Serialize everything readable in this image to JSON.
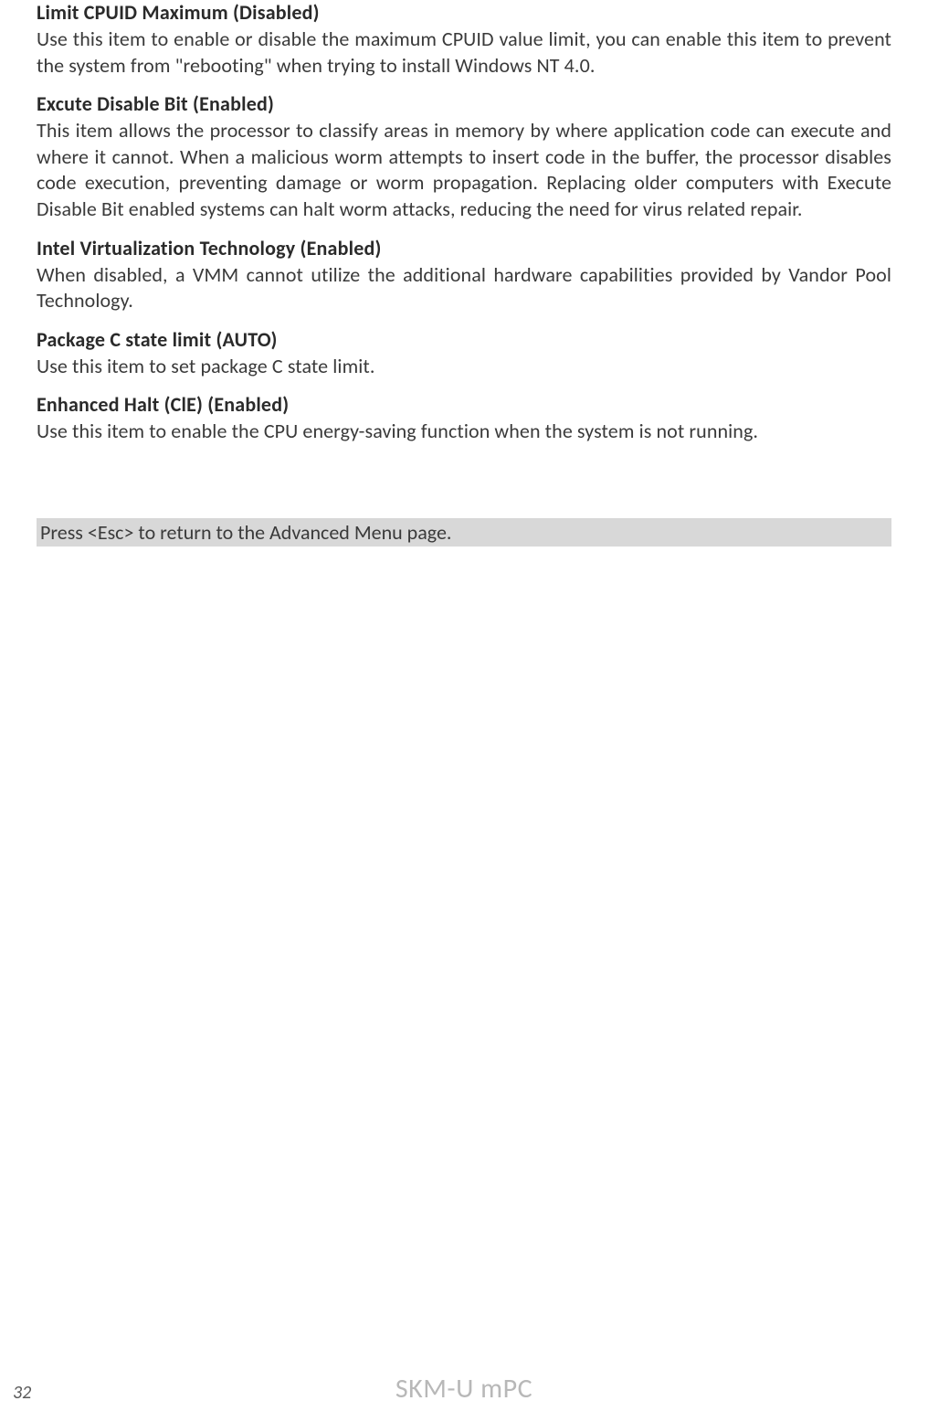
{
  "sections": [
    {
      "heading": "Limit CPUID Maximum (Disabled)",
      "body": "Use this item to enable or disable the maximum CPUID value limit, you can enable this item to prevent the system from \"rebooting\"  when trying to install Windows NT 4.0."
    },
    {
      "heading": "Excute Disable Bit (Enabled)",
      "body": "This item allows the processor to classify areas in memory by where application code can execute and where it cannot. When a malicious worm attempts to insert code in the buffer, the processor disables code execution, preventing damage or worm propagation. Replacing older computers with Execute Disable Bit enabled systems can halt worm attacks, reducing the need for virus related repair."
    },
    {
      "heading": "Intel Virtualization Technology (Enabled)",
      "body": "When disabled, a VMM cannot utilize the additional hardware capabilities provided by Vandor Pool Technology."
    },
    {
      "heading": "Package C state limit (AUTO)",
      "body": "Use this item to set package C state limit."
    },
    {
      "heading": "Enhanced Halt (ClE) (Enabled)",
      "body": "Use this item to enable the CPU energy-saving function when the system is not running."
    }
  ],
  "esc_note": "Press <Esc> to return to the Advanced Menu page.",
  "footer": {
    "page_number": "32",
    "title": "SKM-U mPC"
  },
  "styles": {
    "body_font_size": 22,
    "heading_font_size": 22,
    "heading_color": "#2a2a2a",
    "body_color": "#3a3a3a",
    "esc_bg": "#d8d8d8",
    "footer_title_color": "#b8b8b8",
    "footer_title_size": 30,
    "page_number_color": "#5a5a5a",
    "page_number_size": 20,
    "background_color": "#ffffff"
  }
}
